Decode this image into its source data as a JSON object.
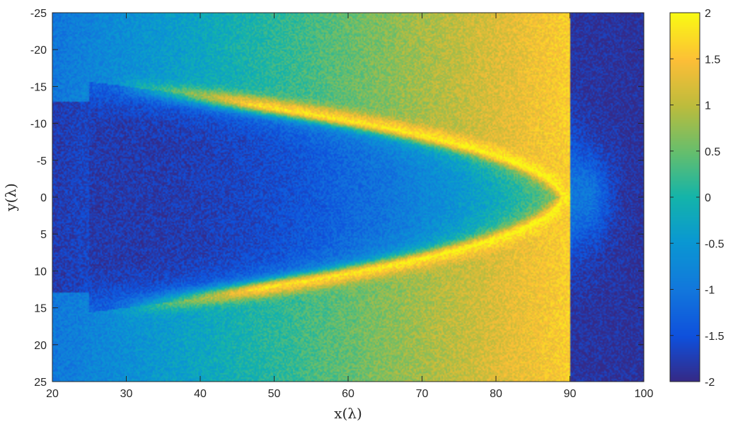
{
  "chart_data": {
    "type": "heatmap",
    "title": "",
    "xlabel": "x(λ)",
    "ylabel": "y(λ)",
    "xlim": [
      20,
      100
    ],
    "ylim": [
      -25,
      25
    ],
    "y_direction": "reverse",
    "x_ticks": [
      "20",
      "30",
      "40",
      "50",
      "60",
      "70",
      "80",
      "90",
      "100"
    ],
    "y_ticks": [
      "-25",
      "-20",
      "-15",
      "-10",
      "-5",
      "0",
      "5",
      "10",
      "15",
      "20",
      "25"
    ],
    "colorbar": {
      "min": -2,
      "max": 2,
      "colormap": "parula",
      "ticks": [
        "2",
        "1.5",
        "1",
        "0.5",
        "0",
        "-0.5",
        "-1",
        "-1.5",
        "-2"
      ]
    },
    "features": {
      "shock_front_x": 90,
      "bow_apex_x": 89,
      "bow_wing_y": 15,
      "wing_end_x": 30,
      "cavity_value": -1.8,
      "shell_value": 1.9,
      "upstream_value": -1.9
    }
  }
}
